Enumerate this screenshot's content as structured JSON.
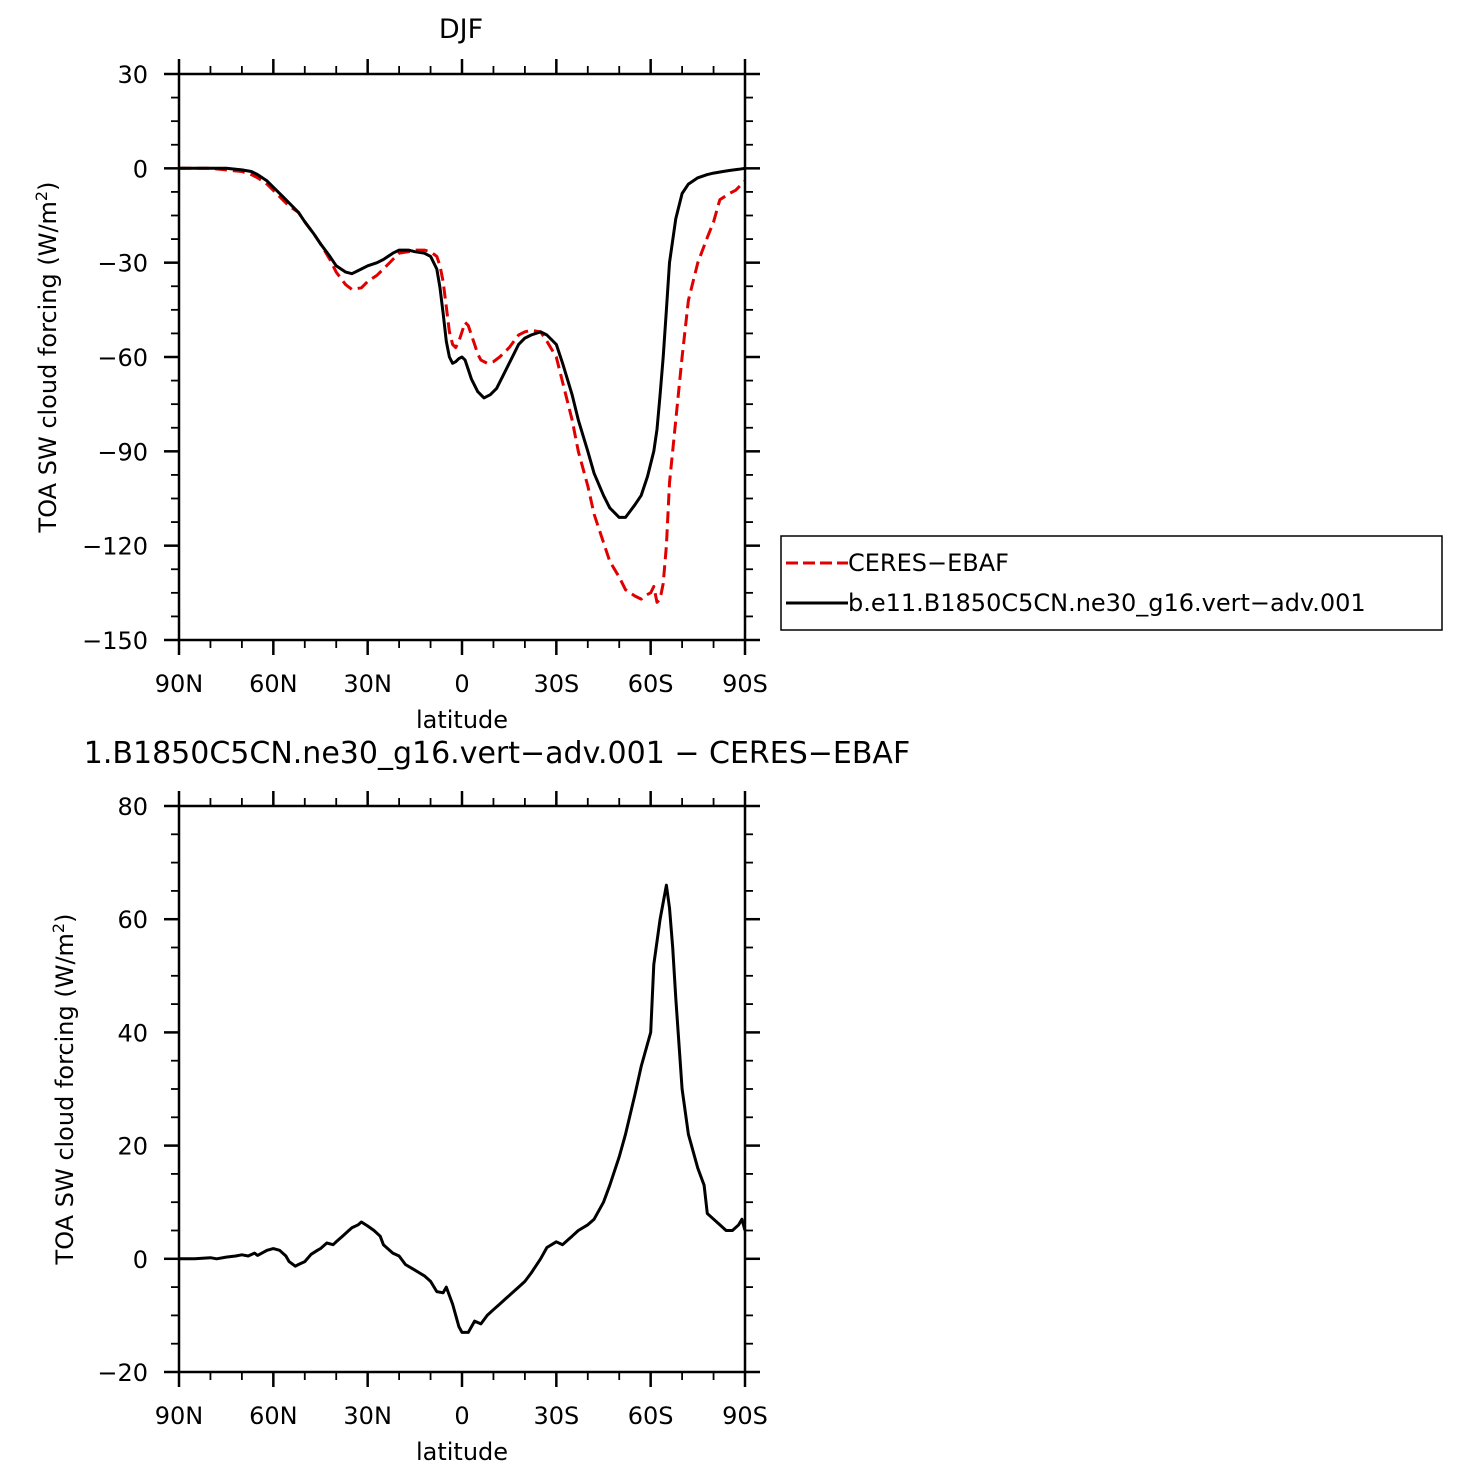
{
  "chart_data": [
    {
      "type": "line",
      "title": "DJF",
      "xlabel": "latitude",
      "ylabel": "TOA SW cloud forcing (W/m",
      "ylabel_sup": "2",
      "ylabel_close": ")",
      "xlim": [
        90,
        -90
      ],
      "ylim": [
        -150,
        30
      ],
      "xticks": [
        {
          "v": 90,
          "label": "90N"
        },
        {
          "v": 60,
          "label": "60N"
        },
        {
          "v": 30,
          "label": "30N"
        },
        {
          "v": 0,
          "label": "0"
        },
        {
          "v": -30,
          "label": "30S"
        },
        {
          "v": -60,
          "label": "60S"
        },
        {
          "v": -90,
          "label": "90S"
        }
      ],
      "yticks": [
        {
          "v": 30,
          "label": "30"
        },
        {
          "v": 0,
          "label": "0"
        },
        {
          "v": -30,
          "label": "−30"
        },
        {
          "v": -60,
          "label": "−60"
        },
        {
          "v": -90,
          "label": "−90"
        },
        {
          "v": -120,
          "label": "−120"
        },
        {
          "v": -150,
          "label": "−150"
        }
      ],
      "legend": {
        "placement": "right",
        "entries": [
          {
            "label": "CERES−EBAF",
            "color": "#e00000",
            "dash": "dashed"
          },
          {
            "label": "b.e11.B1850C5CN.ne30_g16.vert−adv.001",
            "color": "#000000",
            "dash": "solid"
          }
        ]
      },
      "series": [
        {
          "name": "CERES−EBAF",
          "color": "#e00000",
          "dash": "dashed",
          "x": [
            90,
            85,
            80,
            75,
            70,
            67,
            65,
            62,
            60,
            57,
            55,
            52,
            50,
            47,
            45,
            42,
            40,
            37,
            35,
            32,
            30,
            27,
            25,
            22,
            20,
            17,
            15,
            12,
            10,
            8,
            7,
            6,
            5,
            4,
            3,
            2,
            1,
            0,
            -1,
            -2,
            -3,
            -4,
            -5,
            -6,
            -8,
            -10,
            -12,
            -15,
            -18,
            -20,
            -22,
            -25,
            -27,
            -30,
            -32,
            -35,
            -37,
            -40,
            -42,
            -45,
            -47,
            -50,
            -52,
            -55,
            -57,
            -58,
            -60,
            -61,
            -62,
            -63,
            -64,
            -65,
            -66,
            -68,
            -70,
            -72,
            -75,
            -78,
            -80,
            -82,
            -85,
            -87,
            -88,
            -89,
            -90
          ],
          "y": [
            0,
            0,
            0,
            -0.5,
            -1,
            -2,
            -3,
            -5,
            -7,
            -10,
            -12,
            -14,
            -17,
            -21,
            -24,
            -29,
            -33,
            -37,
            -38.5,
            -38,
            -36,
            -34,
            -32,
            -29,
            -27,
            -26.5,
            -26,
            -26,
            -26.5,
            -28,
            -31,
            -36,
            -44,
            -52,
            -56,
            -57,
            -55,
            -52,
            -49,
            -50,
            -53,
            -56,
            -59,
            -61,
            -62,
            -61.5,
            -60,
            -57,
            -53,
            -52,
            -51.5,
            -52,
            -55,
            -60,
            -68,
            -80,
            -90,
            -101,
            -110,
            -119,
            -125,
            -130,
            -134,
            -136,
            -137,
            -136,
            -135,
            -133,
            -138,
            -137,
            -132,
            -120,
            -100,
            -80,
            -60,
            -42,
            -30,
            -22,
            -17,
            -10,
            -8,
            -7,
            -6,
            -5,
            -4
          ]
        },
        {
          "name": "b.e11.B1850C5CN.ne30_g16.vert−adv.001",
          "color": "#000000",
          "dash": "solid",
          "x": [
            90,
            85,
            80,
            75,
            70,
            67,
            65,
            62,
            60,
            57,
            55,
            52,
            50,
            47,
            45,
            42,
            40,
            37,
            35,
            32,
            30,
            27,
            25,
            22,
            20,
            17,
            15,
            12,
            10,
            8,
            7,
            6,
            5,
            4,
            3,
            2,
            1,
            0,
            -1,
            -2,
            -3,
            -5,
            -7,
            -9,
            -11,
            -13,
            -15,
            -18,
            -20,
            -22,
            -25,
            -27,
            -30,
            -32,
            -35,
            -37,
            -40,
            -42,
            -45,
            -47,
            -50,
            -52,
            -55,
            -57,
            -59,
            -61,
            -62,
            -63,
            -64,
            -65,
            -66,
            -68,
            -70,
            -72,
            -75,
            -78,
            -80,
            -83,
            -85,
            -88,
            -90
          ],
          "y": [
            0,
            0,
            0,
            0,
            -0.5,
            -1,
            -2,
            -4,
            -6,
            -9,
            -11,
            -14,
            -17,
            -21,
            -24,
            -28,
            -31,
            -33,
            -33.5,
            -32,
            -31,
            -30,
            -29,
            -27,
            -26,
            -26,
            -26.5,
            -27,
            -28,
            -32,
            -38,
            -46,
            -55,
            -60,
            -62,
            -61.5,
            -60.5,
            -60,
            -61,
            -64,
            -67,
            -71,
            -73,
            -72,
            -70,
            -66,
            -62,
            -56,
            -54,
            -53,
            -52,
            -53,
            -56,
            -62,
            -72,
            -80,
            -90,
            -97,
            -104,
            -108,
            -111,
            -111,
            -107,
            -104,
            -98,
            -90,
            -83,
            -72,
            -60,
            -45,
            -30,
            -16,
            -8,
            -5,
            -3,
            -2,
            -1.5,
            -1,
            -0.7,
            -0.3,
            0
          ]
        }
      ]
    },
    {
      "type": "line",
      "title": "1.B1850C5CN.ne30_g16.vert−adv.001 − CERES−EBAF",
      "xlabel": "latitude",
      "ylabel": "TOA SW cloud forcing (W/m",
      "ylabel_sup": "2",
      "ylabel_close": ")",
      "xlim": [
        90,
        -90
      ],
      "ylim": [
        -20,
        80
      ],
      "xticks": [
        {
          "v": 90,
          "label": "90N"
        },
        {
          "v": 60,
          "label": "60N"
        },
        {
          "v": 30,
          "label": "30N"
        },
        {
          "v": 0,
          "label": "0"
        },
        {
          "v": -30,
          "label": "30S"
        },
        {
          "v": -60,
          "label": "60S"
        },
        {
          "v": -90,
          "label": "90S"
        }
      ],
      "yticks": [
        {
          "v": 80,
          "label": "80"
        },
        {
          "v": 60,
          "label": "60"
        },
        {
          "v": 40,
          "label": "40"
        },
        {
          "v": 20,
          "label": "20"
        },
        {
          "v": 0,
          "label": "0"
        },
        {
          "v": -20,
          "label": "−20"
        }
      ],
      "series": [
        {
          "color": "#000000",
          "dash": "solid",
          "x": [
            90,
            85,
            80,
            78,
            75,
            72,
            70,
            68,
            66,
            65,
            62,
            60,
            58,
            56,
            55,
            53,
            52,
            50,
            48,
            46,
            45,
            43,
            41,
            40,
            38,
            36,
            35,
            33,
            32,
            30,
            28,
            26,
            25,
            22,
            20,
            18,
            15,
            12,
            10,
            8,
            6,
            5,
            3,
            1,
            0,
            -2,
            -4,
            -6,
            -8,
            -10,
            -12,
            -14,
            -16,
            -18,
            -20,
            -22,
            -25,
            -27,
            -30,
            -32,
            -34,
            -35,
            -37,
            -40,
            -42,
            -45,
            -47,
            -50,
            -52,
            -55,
            -57,
            -60,
            -61,
            -63,
            -65,
            -66,
            -67,
            -68,
            -70,
            -72,
            -75,
            -77,
            -78,
            -80,
            -82,
            -84,
            -86,
            -88,
            -89,
            -90
          ],
          "y": [
            0,
            0,
            0.2,
            0,
            0.3,
            0.5,
            0.7,
            0.5,
            1,
            0.6,
            1.5,
            1.8,
            1.5,
            0.5,
            -0.5,
            -1.3,
            -1,
            -0.5,
            0.8,
            1.5,
            1.8,
            2.8,
            2.5,
            3,
            4,
            5,
            5.5,
            6,
            6.5,
            5.8,
            5,
            4,
            2.5,
            1,
            0.5,
            -1,
            -2,
            -3,
            -4,
            -5.8,
            -6,
            -5,
            -8,
            -12,
            -13,
            -13,
            -11,
            -11.5,
            -10,
            -9,
            -8,
            -7,
            -6,
            -5,
            -4,
            -2.5,
            0,
            2,
            3,
            2.5,
            3.5,
            4,
            5,
            6,
            7,
            10,
            13,
            18,
            22,
            29,
            34,
            40,
            52,
            60,
            66,
            62,
            55,
            46,
            30,
            22,
            16,
            13,
            8,
            7,
            6,
            5,
            5,
            6,
            7,
            5
          ]
        }
      ]
    }
  ]
}
